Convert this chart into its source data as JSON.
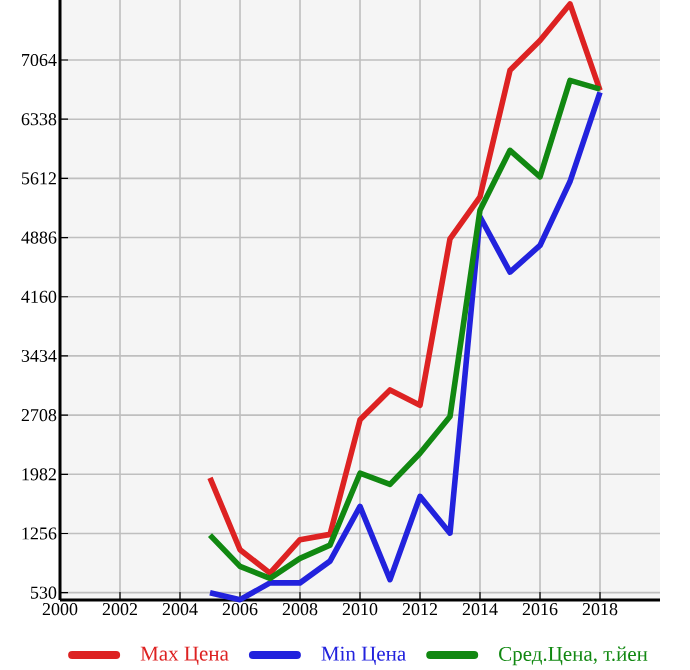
{
  "chart_data": {
    "type": "line",
    "x": [
      2005,
      2006,
      2007,
      2008,
      2009,
      2010,
      2011,
      2012,
      2013,
      2014,
      2015,
      2016,
      2017,
      2018
    ],
    "series": [
      {
        "name": "Max Цена",
        "color": "#dd2222",
        "values": [
          1939,
          1057,
          770,
          1180,
          1245,
          2650,
          3017,
          2828,
          4871,
          5386,
          6937,
          7304,
          7752,
          6692
        ]
      },
      {
        "name": "Min Цена",
        "color": "#2222dd",
        "values": [
          530,
          444,
          650,
          650,
          917,
          1588,
          690,
          1711,
          1260,
          5141,
          4462,
          4789,
          5573,
          6668
        ]
      },
      {
        "name": "Сред.Цена, т.йен",
        "color": "#118811",
        "values": [
          1236,
          853,
          706,
          951,
          1113,
          1995,
          1858,
          2240,
          2691,
          5222,
          5956,
          5630,
          6814,
          6707
        ]
      }
    ],
    "xlim": [
      2000,
      2020
    ],
    "ylim": [
      440,
      7800
    ],
    "xticks": [
      2000,
      2002,
      2004,
      2006,
      2008,
      2010,
      2012,
      2014,
      2016,
      2018
    ],
    "yticks": [
      530,
      1256,
      1982,
      2708,
      3434,
      4160,
      4886,
      5612,
      6338,
      7064
    ],
    "grid": true,
    "legend": "bottom",
    "marker": "none",
    "line_style": "solid"
  }
}
